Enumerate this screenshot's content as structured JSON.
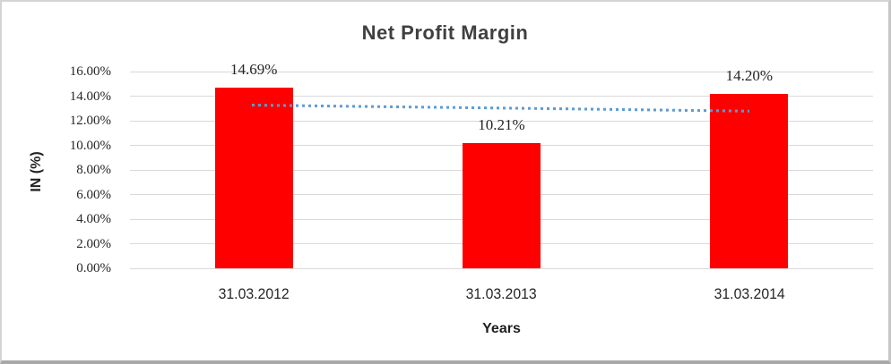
{
  "chart_data": {
    "type": "bar",
    "title": "Net Profit Margin",
    "xlabel": "Years",
    "ylabel": "IN (%)",
    "categories": [
      "31.03.2012",
      "31.03.2013",
      "31.03.2014"
    ],
    "values": [
      14.69,
      10.21,
      14.2
    ],
    "value_labels": [
      "14.69%",
      "10.21%",
      "14.20%"
    ],
    "ylim": [
      0,
      16
    ],
    "ytick_step": 2,
    "ytick_labels": [
      "0.00%",
      "2.00%",
      "4.00%",
      "6.00%",
      "8.00%",
      "10.00%",
      "12.00%",
      "14.00%",
      "16.00%"
    ],
    "grid": true,
    "legend_position": "none",
    "bar_color": "#ff0000",
    "trendline": {
      "type": "linear",
      "style": "dotted",
      "color": "#5b9bd5",
      "start_value_pct": 13.28,
      "end_value_pct": 12.79
    },
    "colors": {
      "gridline": "#d9d9d9",
      "tick_text": "#262626",
      "title_text": "#404040",
      "axis_title_text": "#1f1f1f"
    }
  }
}
